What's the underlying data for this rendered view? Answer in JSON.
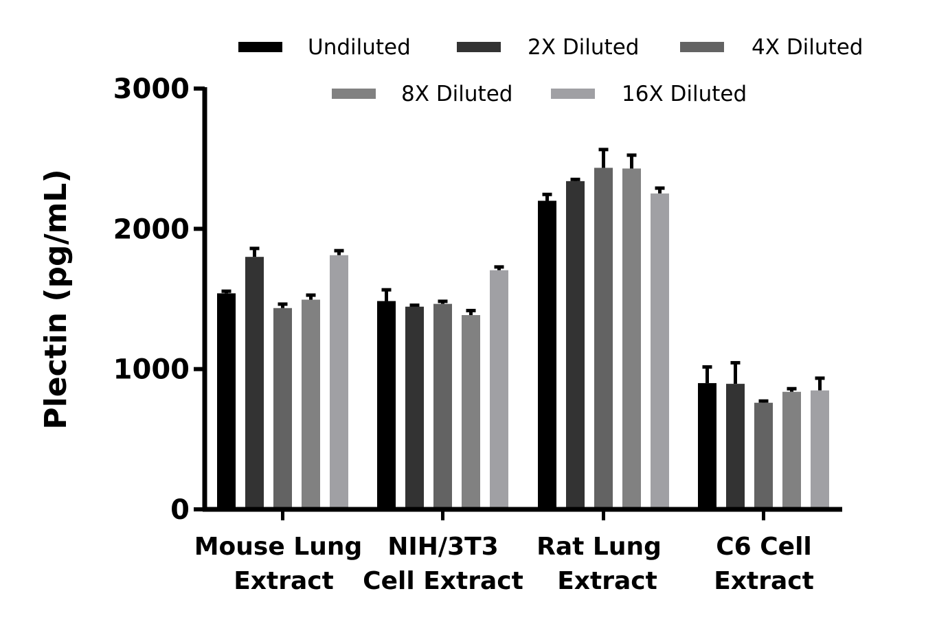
{
  "chart_data": {
    "type": "bar",
    "title": "",
    "xlabel": "",
    "ylabel": "Plectin (pg/mL)",
    "ylim": [
      0,
      3000
    ],
    "yticks": [
      0,
      1000,
      2000,
      3000
    ],
    "grid": false,
    "legend_position": "top",
    "categories": [
      [
        "Mouse Lung",
        "Extract"
      ],
      [
        "NIH/3T3",
        "Cell Extract"
      ],
      [
        "Rat Lung",
        "Extract"
      ],
      [
        "C6 Cell",
        "Extract"
      ]
    ],
    "series": [
      {
        "name": "Undiluted",
        "color": "#000000",
        "values": [
          1540,
          1485,
          2200,
          900
        ],
        "error": [
          25,
          90,
          55,
          125
        ]
      },
      {
        "name": "2X Diluted",
        "color": "#333333",
        "values": [
          1800,
          1445,
          2340,
          895
        ],
        "error": [
          70,
          20,
          22,
          160
        ]
      },
      {
        "name": "4X Diluted",
        "color": "#636363",
        "values": [
          1435,
          1465,
          2435,
          760
        ],
        "error": [
          38,
          28,
          140,
          22
        ]
      },
      {
        "name": "8X Diluted",
        "color": "#818181",
        "values": [
          1495,
          1385,
          2430,
          838
        ],
        "error": [
          42,
          42,
          105,
          32
        ]
      },
      {
        "name": "16X Diluted",
        "color": "#a0a0a4",
        "values": [
          1812,
          1705,
          2252,
          848
        ],
        "error": [
          42,
          33,
          48,
          97
        ]
      }
    ]
  }
}
